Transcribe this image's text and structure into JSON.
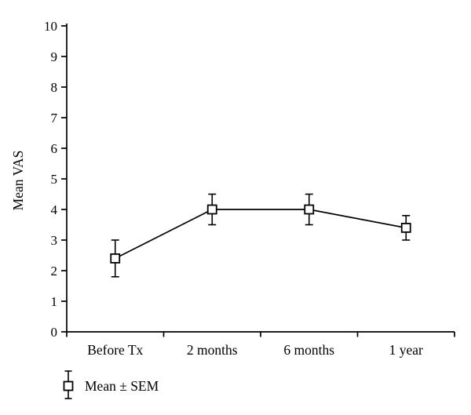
{
  "figure": {
    "background": "#ffffff"
  },
  "chart_data": {
    "type": "line",
    "title": "",
    "xlabel": "",
    "ylabel": "Mean VAS",
    "categories": [
      "Before Tx",
      "2 months",
      "6 months",
      "1 year"
    ],
    "series": [
      {
        "name": "Mean ± SEM",
        "values": [
          2.4,
          4.0,
          4.0,
          3.4
        ],
        "sem": [
          0.6,
          0.5,
          0.5,
          0.4
        ],
        "marker": "open-square",
        "error_bars": "symmetric-with-caps"
      }
    ],
    "ylim": [
      0,
      10
    ],
    "ytick_step": 1,
    "grid": false,
    "legend": {
      "label": "Mean ± SEM",
      "position": "bottom-left"
    },
    "colors": {
      "stroke": "#000000",
      "marker_fill": "#ffffff",
      "text": "#000000",
      "background": "#ffffff"
    }
  }
}
